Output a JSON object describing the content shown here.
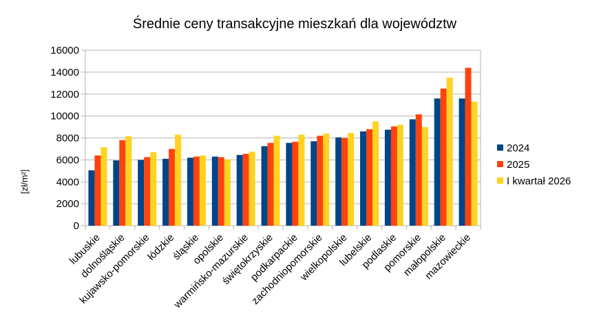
{
  "chart_data": {
    "type": "bar",
    "title": "Średnie ceny transakcyjne mieszkań dla województw",
    "xlabel": "",
    "ylabel": "[zł/m²]",
    "ylim": [
      0,
      16000
    ],
    "yticks": [
      0,
      2000,
      4000,
      6000,
      8000,
      10000,
      12000,
      14000,
      16000
    ],
    "grid": true,
    "legend_position": "right",
    "categories": [
      "lubuskie",
      "dolnośląskie",
      "kujawsko-pomorskie",
      "łódzkie",
      "śląskie",
      "opolskie",
      "warmińsko-mazurskie",
      "świętokrzyskie",
      "podkarpackie",
      "zachodniopomorskie",
      "wielkopolskie",
      "lubelskie",
      "podlaskie",
      "pomorskie",
      "małopolskie",
      "mazowieckie"
    ],
    "series": [
      {
        "name": "2024",
        "color": "#004586",
        "values": [
          5050,
          5950,
          6000,
          6100,
          6200,
          6300,
          6450,
          7250,
          7550,
          7700,
          8050,
          8600,
          8750,
          9700,
          11600,
          11600
        ]
      },
      {
        "name": "2025",
        "color": "#ff420e",
        "values": [
          6400,
          7800,
          6250,
          7000,
          6300,
          6250,
          6550,
          7550,
          7650,
          8200,
          8000,
          8800,
          9050,
          10150,
          12500,
          14400
        ]
      },
      {
        "name": "I kwartał 2026",
        "color": "#ffd320",
        "values": [
          7150,
          8150,
          6700,
          8300,
          6400,
          6050,
          6750,
          8200,
          8300,
          8400,
          8450,
          9500,
          9200,
          9000,
          13500,
          11300
        ]
      }
    ]
  }
}
